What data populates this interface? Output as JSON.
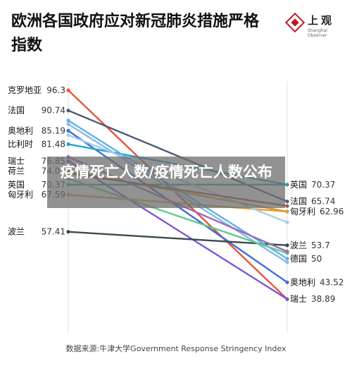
{
  "header": {
    "title": "欧洲各国政府应对新冠肺炎措施严格指数",
    "logo_name": "上观",
    "logo_sub": "Shanghai Observer"
  },
  "overlay_text": "疫情死亡人数/疫情死亡人数公布",
  "source_note": "数据来源:牛津大学Government Response Stringency Index",
  "chart_data": {
    "type": "line",
    "title": "欧洲各国政府应对新冠肺炎措施严格指数",
    "ylim": [
      30,
      100
    ],
    "series": [
      {
        "name": "克罗地亚",
        "start": 96.3,
        "end": 38.89,
        "color": "#e8553a"
      },
      {
        "name": "法国",
        "start": 90.74,
        "end": 65.74,
        "color": "#4a5a78"
      },
      {
        "name": "奥地利",
        "start": 85.19,
        "end": 43.52,
        "color": "#3f6ed8"
      },
      {
        "name": "比利时",
        "start": 81.48,
        "end": 70.37,
        "color": "#19a7c9"
      },
      {
        "name": "瑞士",
        "start": 76.85,
        "end": 38.89,
        "color": "#7b57d6"
      },
      {
        "name": "荷兰",
        "start": 74.07,
        "end": 62.96,
        "color": "#c9a02c"
      },
      {
        "name": "英国",
        "start": 70.37,
        "end": 70.37,
        "color": "#2aa59a"
      },
      {
        "name": "匈牙利",
        "start": 67.59,
        "end": 62.96,
        "color": "#e89a3a"
      },
      {
        "name": "波兰",
        "start": 57.41,
        "end": 53.7,
        "color": "#3a4a4a"
      },
      {
        "name": "德国",
        "start": 88.0,
        "end": 50,
        "color": "#5cb3e8"
      },
      {
        "name": "",
        "start": 87.0,
        "end": 49.0,
        "color": "#8fb7e6"
      },
      {
        "name": "",
        "start": 84.0,
        "end": 60.0,
        "color": "#a8cde8"
      },
      {
        "name": "",
        "start": 72.0,
        "end": 51.5,
        "color": "#63c98a"
      },
      {
        "name": "",
        "start": 78.0,
        "end": 52.0,
        "color": "#9a6ab8"
      },
      {
        "name": "",
        "start": 73.5,
        "end": 64.5,
        "color": "#a3563a"
      }
    ],
    "left_labels": [
      {
        "name": "克罗地亚",
        "value": "96.3",
        "v": 96.3
      },
      {
        "name": "法国",
        "value": "90.74",
        "v": 90.74
      },
      {
        "name": "奥地利",
        "value": "85.19",
        "v": 85.19
      },
      {
        "name": "比利时",
        "value": "81.48",
        "v": 81.48
      },
      {
        "name": "瑞士",
        "value": "76.85",
        "v": 76.85
      },
      {
        "name": "荷兰",
        "value": "74.07",
        "v": 74.07
      },
      {
        "name": "英国",
        "value": "70.37",
        "v": 70.37
      },
      {
        "name": "匈牙利",
        "value": "67.59",
        "v": 67.59
      },
      {
        "name": "波兰",
        "value": "57.41",
        "v": 57.41
      }
    ],
    "right_labels": [
      {
        "name": "英国",
        "value": "70.37",
        "v": 70.37
      },
      {
        "name": "法国",
        "value": "65.74",
        "v": 65.74
      },
      {
        "name": "匈牙利",
        "value": "62.96",
        "v": 62.96
      },
      {
        "name": "波兰",
        "value": "53.7",
        "v": 53.7
      },
      {
        "name": "德国",
        "value": "50",
        "v": 50
      },
      {
        "name": "奥地利",
        "value": "43.52",
        "v": 43.52
      },
      {
        "name": "瑞士",
        "value": "38.89",
        "v": 38.89
      }
    ]
  }
}
